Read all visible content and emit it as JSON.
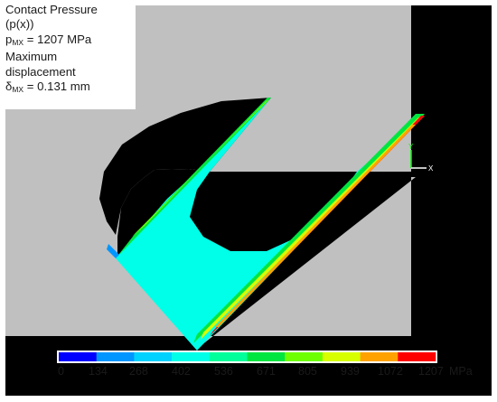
{
  "info": {
    "line1": "Contact Pressure",
    "line2": "(p(x))",
    "p_sym": "p",
    "p_sub": "MX",
    "p_val": " = 1207 MPa",
    "line4": "Maximum",
    "line5": "displacement",
    "d_sym": "δ",
    "d_sub": "MX",
    "d_val": " = 0.131 mm"
  },
  "axes": {
    "y_label": "Y",
    "x_label": "X"
  },
  "legend": {
    "unit": "MPa",
    "ticks": [
      "0",
      "134",
      "268",
      "402",
      "536",
      "671",
      "805",
      "939",
      "1072",
      "1207"
    ],
    "colors": [
      "#0000ff",
      "#0096ff",
      "#00d2ff",
      "#00ffe8",
      "#00ff9a",
      "#00e640",
      "#6eff00",
      "#d8ff00",
      "#ffa200",
      "#ff0000"
    ]
  },
  "colors": {
    "background": "#000000",
    "body": "#c0c0c0",
    "contact_region": "#00ffff"
  }
}
